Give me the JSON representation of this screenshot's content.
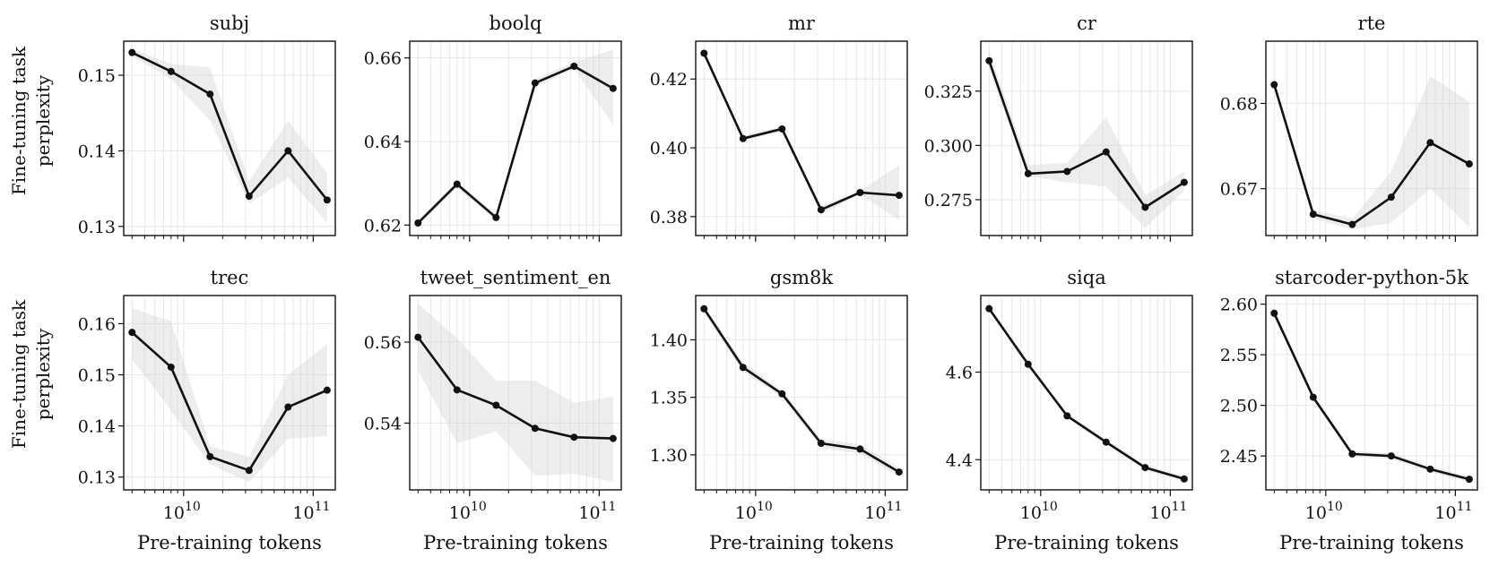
{
  "figure": {
    "ylabel_lines": [
      "Fine-tuning task",
      "perplexity"
    ],
    "xlabel": "Pre-training tokens"
  },
  "chart_data": [
    {
      "type": "line",
      "title": "subj",
      "x": [
        4000000000.0,
        8000000000.0,
        16000000000.0,
        32000000000.0,
        64000000000.0,
        128000000000.0
      ],
      "values": [
        0.153,
        0.1505,
        0.1475,
        0.134,
        0.14,
        0.1335
      ],
      "lower": [
        0.1525,
        0.1495,
        0.144,
        0.133,
        0.1365,
        0.1305
      ],
      "upper": [
        0.1535,
        0.1515,
        0.151,
        0.136,
        0.144,
        0.137
      ],
      "ylim": [
        0.1288,
        0.1545
      ],
      "yticks": [
        0.13,
        0.14,
        0.15
      ],
      "ytick_labels": [
        "0.13",
        "0.14",
        "0.15"
      ]
    },
    {
      "type": "line",
      "title": "boolq",
      "x": [
        4000000000.0,
        8000000000.0,
        16000000000.0,
        32000000000.0,
        64000000000.0,
        128000000000.0
      ],
      "values": [
        0.6205,
        0.6298,
        0.6218,
        0.654,
        0.658,
        0.6527
      ],
      "lower": [
        0.62,
        0.629,
        0.621,
        0.653,
        0.6575,
        0.644
      ],
      "upper": [
        0.621,
        0.6305,
        0.6225,
        0.655,
        0.659,
        0.662
      ],
      "ylim": [
        0.6175,
        0.664
      ],
      "yticks": [
        0.62,
        0.64,
        0.66
      ],
      "ytick_labels": [
        "0.62",
        "0.64",
        "0.66"
      ]
    },
    {
      "type": "line",
      "title": "mr",
      "x": [
        4000000000.0,
        8000000000.0,
        16000000000.0,
        32000000000.0,
        64000000000.0,
        128000000000.0
      ],
      "values": [
        0.4275,
        0.4027,
        0.4055,
        0.382,
        0.387,
        0.3862
      ],
      "lower": [
        0.427,
        0.402,
        0.4048,
        0.3805,
        0.3865,
        0.379
      ],
      "upper": [
        0.428,
        0.4035,
        0.4062,
        0.383,
        0.3875,
        0.395
      ],
      "ylim": [
        0.3745,
        0.431
      ],
      "yticks": [
        0.38,
        0.4,
        0.42
      ],
      "ytick_labels": [
        "0.38",
        "0.40",
        "0.42"
      ]
    },
    {
      "type": "line",
      "title": "cr",
      "x": [
        4000000000.0,
        8000000000.0,
        16000000000.0,
        32000000000.0,
        64000000000.0,
        128000000000.0
      ],
      "values": [
        0.339,
        0.287,
        0.288,
        0.297,
        0.2715,
        0.283
      ],
      "lower": [
        0.335,
        0.286,
        0.283,
        0.281,
        0.262,
        0.279
      ],
      "upper": [
        0.344,
        0.291,
        0.292,
        0.313,
        0.277,
        0.288
      ],
      "ylim": [
        0.2585,
        0.348
      ],
      "yticks": [
        0.275,
        0.3,
        0.325
      ],
      "ytick_labels": [
        "0.275",
        "0.300",
        "0.325"
      ]
    },
    {
      "type": "line",
      "title": "rte",
      "x": [
        4000000000.0,
        8000000000.0,
        16000000000.0,
        32000000000.0,
        64000000000.0,
        128000000000.0
      ],
      "values": [
        0.6822,
        0.667,
        0.6658,
        0.669,
        0.6754,
        0.6729
      ],
      "lower": [
        0.6818,
        0.6665,
        0.6652,
        0.666,
        0.67,
        0.6655
      ],
      "upper": [
        0.6826,
        0.6675,
        0.6665,
        0.672,
        0.6832,
        0.6802
      ],
      "ylim": [
        0.6645,
        0.6873
      ],
      "yticks": [
        0.67,
        0.68
      ],
      "ytick_labels": [
        "0.67",
        "0.68"
      ]
    },
    {
      "type": "line",
      "title": "trec",
      "x": [
        4000000000.0,
        8000000000.0,
        16000000000.0,
        32000000000.0,
        64000000000.0,
        128000000000.0
      ],
      "values": [
        0.1583,
        0.1515,
        0.134,
        0.1313,
        0.1437,
        0.147
      ],
      "lower": [
        0.153,
        0.143,
        0.1325,
        0.129,
        0.1375,
        0.138
      ],
      "upper": [
        0.163,
        0.1605,
        0.136,
        0.134,
        0.15,
        0.156
      ],
      "ylim": [
        0.1275,
        0.1655
      ],
      "yticks": [
        0.13,
        0.14,
        0.15,
        0.16
      ],
      "ytick_labels": [
        "0.13",
        "0.14",
        "0.15",
        "0.16"
      ]
    },
    {
      "type": "line",
      "title": "tweet_sentiment_en",
      "x": [
        4000000000.0,
        8000000000.0,
        16000000000.0,
        32000000000.0,
        64000000000.0,
        128000000000.0
      ],
      "values": [
        0.5612,
        0.5482,
        0.5444,
        0.5387,
        0.5365,
        0.5362
      ],
      "lower": [
        0.553,
        0.535,
        0.538,
        0.527,
        0.5275,
        0.5255
      ],
      "upper": [
        0.5695,
        0.561,
        0.5505,
        0.5505,
        0.545,
        0.5465
      ],
      "ylim": [
        0.5235,
        0.5715
      ],
      "yticks": [
        0.54,
        0.56
      ],
      "ytick_labels": [
        "0.54",
        "0.56"
      ]
    },
    {
      "type": "line",
      "title": "gsm8k",
      "x": [
        4000000000.0,
        8000000000.0,
        16000000000.0,
        32000000000.0,
        64000000000.0,
        128000000000.0
      ],
      "values": [
        1.427,
        1.376,
        1.353,
        1.31,
        1.305,
        1.285
      ],
      "lower": [
        1.424,
        1.372,
        1.35,
        1.306,
        1.301,
        1.281
      ],
      "upper": [
        1.43,
        1.38,
        1.356,
        1.314,
        1.309,
        1.289
      ],
      "ylim": [
        1.2695,
        1.4385
      ],
      "yticks": [
        1.3,
        1.35,
        1.4
      ],
      "ytick_labels": [
        "1.30",
        "1.35",
        "1.40"
      ]
    },
    {
      "type": "line",
      "title": "siqa",
      "x": [
        4000000000.0,
        8000000000.0,
        16000000000.0,
        32000000000.0,
        64000000000.0,
        128000000000.0
      ],
      "values": [
        4.745,
        4.618,
        4.5,
        4.44,
        4.382,
        4.356
      ],
      "lower": [
        4.74,
        4.612,
        4.494,
        4.434,
        4.376,
        4.35
      ],
      "upper": [
        4.75,
        4.624,
        4.506,
        4.446,
        4.388,
        4.362
      ],
      "ylim": [
        4.331,
        4.775
      ],
      "yticks": [
        4.4,
        4.6
      ],
      "ytick_labels": [
        "4.4",
        "4.6"
      ]
    },
    {
      "type": "line",
      "title": "starcoder-python-5k",
      "x": [
        4000000000.0,
        8000000000.0,
        16000000000.0,
        32000000000.0,
        64000000000.0,
        128000000000.0
      ],
      "values": [
        2.591,
        2.508,
        2.452,
        2.45,
        2.437,
        2.427
      ],
      "lower": [
        2.588,
        2.505,
        2.449,
        2.447,
        2.434,
        2.424
      ],
      "upper": [
        2.594,
        2.511,
        2.455,
        2.453,
        2.44,
        2.43
      ],
      "ylim": [
        2.4165,
        2.6085
      ],
      "yticks": [
        2.45,
        2.5,
        2.55,
        2.6
      ],
      "ytick_labels": [
        "2.45",
        "2.50",
        "2.55",
        "2.60"
      ]
    }
  ],
  "xaxis": {
    "scale": "log",
    "xlim": [
      3450000000.0,
      148000000000.0
    ],
    "major_ticks": [
      10000000000.0,
      100000000000.0
    ],
    "major_tick_labels": [
      {
        "base": "10",
        "exp": "10"
      },
      {
        "base": "10",
        "exp": "11"
      }
    ]
  },
  "colors": {
    "line": "#111111",
    "band": "#d8d8d8",
    "grid": "#e6e6e6",
    "axes": "#111111"
  }
}
